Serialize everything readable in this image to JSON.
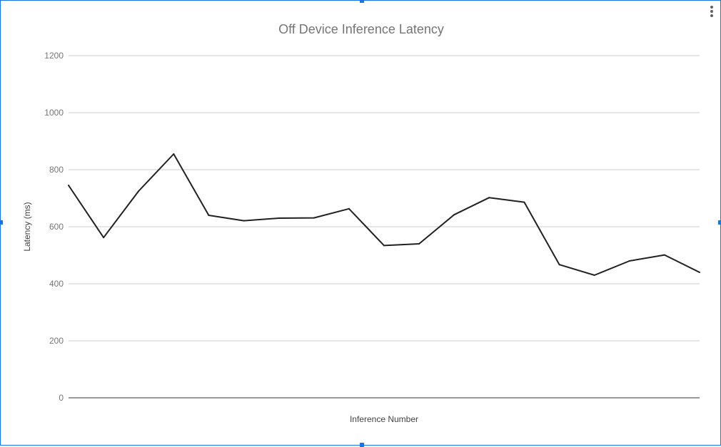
{
  "chart_data": {
    "type": "line",
    "title": "Off Device Inference Latency",
    "xlabel": "Inference Number",
    "ylabel": "Latency (ms)",
    "ylim": [
      0,
      1200
    ],
    "yticks": [
      0,
      200,
      400,
      600,
      800,
      1000,
      1200
    ],
    "grid": true,
    "x": [
      1,
      2,
      3,
      4,
      5,
      6,
      7,
      8,
      9,
      10,
      11,
      12,
      13,
      14,
      15,
      16,
      17,
      18,
      19
    ],
    "series": [
      {
        "values": [
          745,
          562,
          725,
          855,
          640,
          621,
          630,
          631,
          663,
          534,
          540,
          642,
          702,
          686,
          467,
          430,
          480,
          501,
          440
        ]
      }
    ],
    "colors": {
      "line": "#212121",
      "grid": "#cccccc",
      "axis": "#333333",
      "text": "#757575"
    }
  },
  "menu": {
    "icon": "more-vert-icon"
  }
}
